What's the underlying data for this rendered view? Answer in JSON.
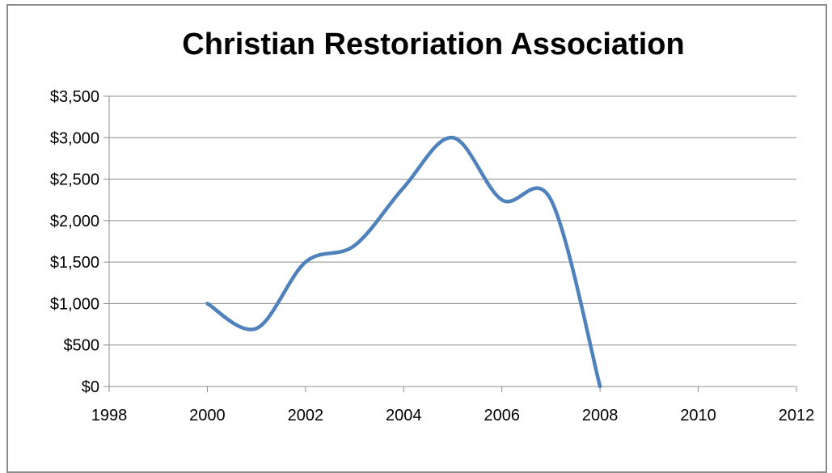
{
  "chart_data": {
    "type": "line",
    "title": "Christian Restoriation Association",
    "xlabel": "",
    "ylabel": "",
    "xlim": [
      1998,
      2012
    ],
    "ylim": [
      0,
      3500
    ],
    "x_ticks": [
      "1998",
      "2000",
      "2002",
      "2004",
      "2006",
      "2008",
      "2010",
      "2012"
    ],
    "y_ticks": [
      "$0",
      "$500",
      "$1,000",
      "$1,500",
      "$2,000",
      "$2,500",
      "$3,000",
      "$3,500"
    ],
    "grid": "horizontal",
    "legend": "none",
    "smoothed": true,
    "series": [
      {
        "color": "#4f81bd",
        "x": [
          2000,
          2001,
          2002,
          2003,
          2004,
          2005,
          2006,
          2007,
          2008
        ],
        "y": [
          1000,
          700,
          1500,
          1700,
          2400,
          3000,
          2250,
          2250,
          0
        ]
      }
    ]
  }
}
